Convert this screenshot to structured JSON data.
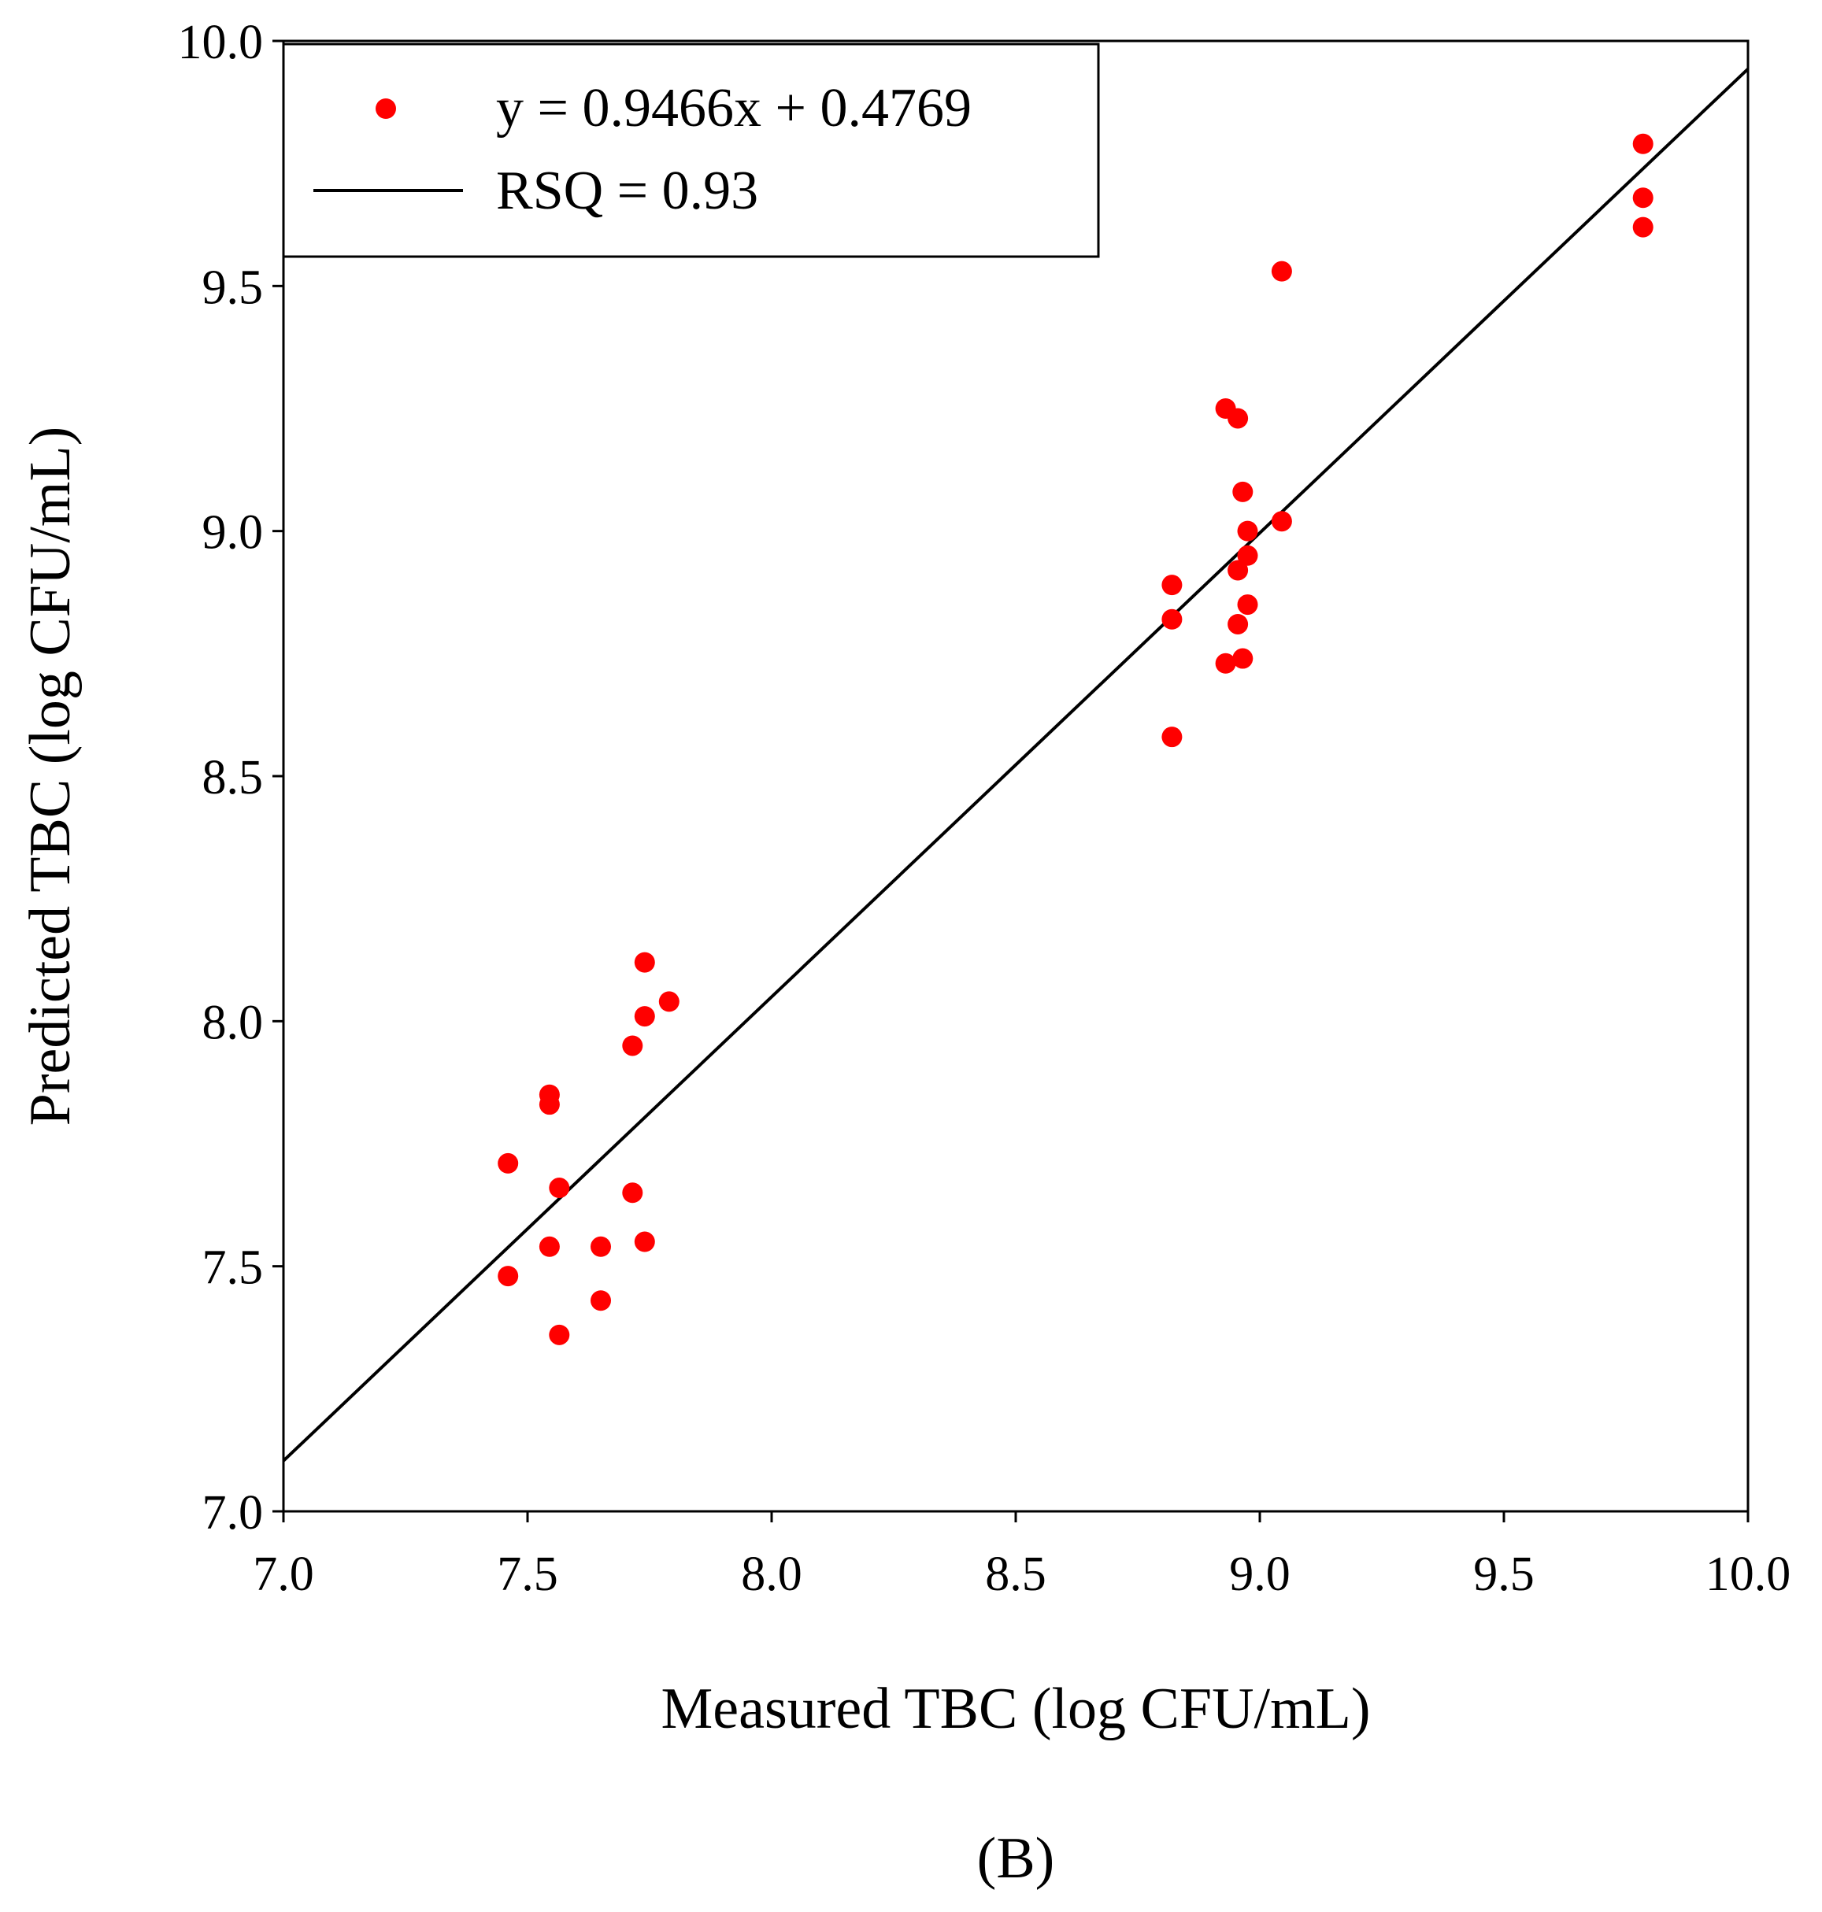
{
  "chart_data": {
    "type": "scatter",
    "xlabel": "Measured TBC (log CFU/mL)",
    "ylabel": "Predicted TBC (log CFU/mL)",
    "caption": "(B)",
    "xlim": [
      7.0,
      10.0
    ],
    "ylim": [
      7.0,
      10.0
    ],
    "x_ticks": [
      "7.0",
      "7.5",
      "8.0",
      "8.5",
      "9.0",
      "9.5",
      "10.0"
    ],
    "y_ticks": [
      "7.0",
      "7.5",
      "8.0",
      "8.5",
      "9.0",
      "9.5",
      "10.0"
    ],
    "grid": false,
    "legend_position": "top-left",
    "series": [
      {
        "name": "y = 0.9466x + 0.4769",
        "kind": "scatter",
        "color": "#ff0000",
        "points": [
          [
            7.46,
            7.71
          ],
          [
            7.46,
            7.48
          ],
          [
            7.545,
            7.85
          ],
          [
            7.545,
            7.83
          ],
          [
            7.545,
            7.54
          ],
          [
            7.565,
            7.66
          ],
          [
            7.565,
            7.36
          ],
          [
            7.65,
            7.54
          ],
          [
            7.65,
            7.43
          ],
          [
            7.715,
            7.95
          ],
          [
            7.715,
            7.65
          ],
          [
            7.74,
            8.12
          ],
          [
            7.74,
            8.01
          ],
          [
            7.74,
            7.55
          ],
          [
            7.79,
            8.04
          ],
          [
            8.82,
            8.89
          ],
          [
            8.82,
            8.82
          ],
          [
            8.82,
            8.58
          ],
          [
            8.93,
            9.25
          ],
          [
            8.93,
            8.73
          ],
          [
            8.955,
            9.23
          ],
          [
            8.955,
            8.92
          ],
          [
            8.955,
            8.81
          ],
          [
            8.965,
            9.08
          ],
          [
            8.965,
            8.74
          ],
          [
            8.975,
            9.0
          ],
          [
            8.975,
            8.95
          ],
          [
            8.975,
            8.85
          ],
          [
            9.045,
            9.53
          ],
          [
            9.045,
            9.02
          ],
          [
            9.785,
            9.79
          ],
          [
            9.785,
            9.68
          ],
          [
            9.785,
            9.62
          ]
        ]
      },
      {
        "name": "RSQ = 0.93",
        "kind": "line",
        "color": "#000000",
        "slope": 0.9466,
        "intercept": 0.4769,
        "x_range": [
          7.0,
          10.0
        ]
      }
    ]
  }
}
